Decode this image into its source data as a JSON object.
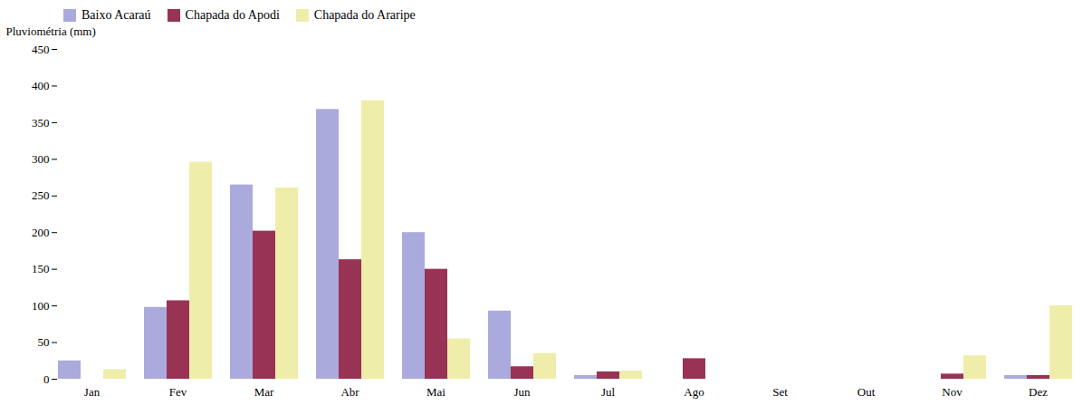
{
  "chart_data": {
    "type": "bar",
    "categories": [
      "Jan",
      "Fev",
      "Mar",
      "Abr",
      "Mai",
      "Jun",
      "Jul",
      "Ago",
      "Set",
      "Out",
      "Nov",
      "Dez"
    ],
    "series": [
      {
        "name": "Baixo Acaraú",
        "color": "#aaaadd",
        "values": [
          25,
          98,
          265,
          368,
          200,
          93,
          5,
          0,
          0,
          0,
          0,
          5
        ]
      },
      {
        "name": "Chapada do Apodi",
        "color": "#993355",
        "values": [
          0,
          107,
          202,
          163,
          150,
          17,
          10,
          28,
          0,
          0,
          7,
          5
        ]
      },
      {
        "name": "Chapada do Araripe",
        "color": "#eeeeaa",
        "values": [
          13,
          296,
          261,
          380,
          55,
          35,
          11,
          0,
          0,
          0,
          32,
          100
        ]
      }
    ],
    "ylabel": "Pluviométria (mm)",
    "ylim": [
      0,
      450
    ],
    "yticks": [
      0,
      50,
      100,
      150,
      200,
      250,
      300,
      350,
      400,
      450
    ],
    "grid": false,
    "legend": "upper left"
  }
}
